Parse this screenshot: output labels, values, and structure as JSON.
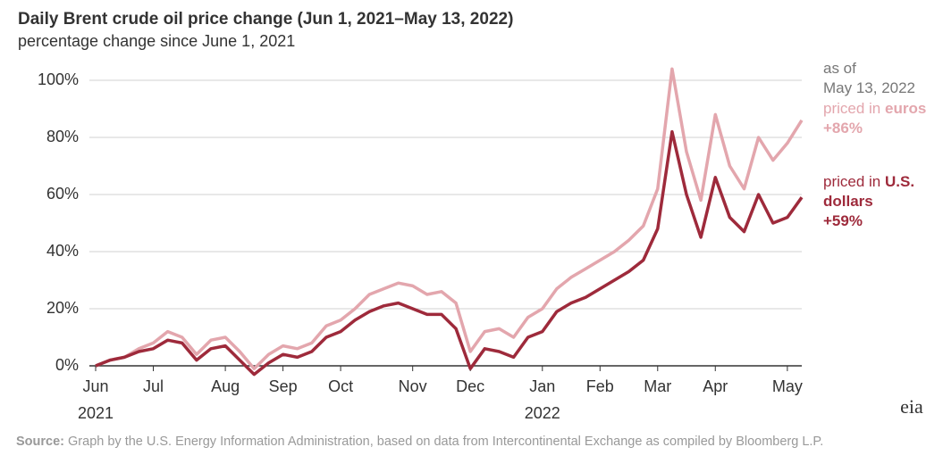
{
  "chart_data": {
    "type": "line",
    "title": "Daily Brent crude oil price change (Jun 1, 2021–May 13, 2022)",
    "subtitle": "percentage change since June 1, 2021",
    "categories": [
      "Jun",
      null,
      null,
      null,
      "Jul",
      null,
      null,
      null,
      null,
      "Aug",
      null,
      null,
      null,
      "Sep",
      null,
      null,
      null,
      "Oct",
      null,
      null,
      null,
      null,
      "Nov",
      null,
      null,
      null,
      "Dec",
      null,
      null,
      null,
      null,
      "Jan",
      null,
      null,
      null,
      "Feb",
      null,
      null,
      null,
      "Mar",
      null,
      null,
      null,
      "Apr",
      null,
      null,
      null,
      null,
      "May",
      null
    ],
    "year_labels": [
      {
        "month": "Jun",
        "year": "2021"
      },
      {
        "month": "Jan",
        "year": "2022"
      }
    ],
    "ylim": [
      -3,
      106
    ],
    "yticks": [
      {
        "value": 0,
        "label": "0%"
      },
      {
        "value": 20,
        "label": "20%"
      },
      {
        "value": 40,
        "label": "40%"
      },
      {
        "value": 60,
        "label": "60%"
      },
      {
        "value": 80,
        "label": "80%"
      },
      {
        "value": 100,
        "label": "100%"
      }
    ],
    "grid": true,
    "as_of": [
      "as of",
      "May 13, 2022"
    ],
    "series": [
      {
        "name": "euros",
        "prefix": "priced in",
        "end_label": "+86%",
        "color": "#e3a6ad",
        "values": [
          0,
          2,
          3,
          6,
          8,
          12,
          10,
          4,
          9,
          10,
          5,
          -1,
          4,
          7,
          6,
          8,
          14,
          16,
          20,
          25,
          27,
          29,
          28,
          25,
          26,
          22,
          5,
          12,
          13,
          10,
          17,
          20,
          27,
          31,
          34,
          37,
          40,
          44,
          49,
          62,
          104,
          75,
          58,
          88,
          70,
          62,
          80,
          72,
          78,
          86
        ]
      },
      {
        "name": "U.S. dollars",
        "prefix": "priced in",
        "end_label": "+59%",
        "color": "#9e2a3b",
        "values": [
          0,
          2,
          3,
          5,
          6,
          9,
          8,
          2,
          6,
          7,
          2,
          -3,
          1,
          4,
          3,
          5,
          10,
          12,
          16,
          19,
          21,
          22,
          20,
          18,
          18,
          13,
          -1,
          6,
          5,
          3,
          10,
          12,
          19,
          22,
          24,
          27,
          30,
          33,
          37,
          48,
          82,
          60,
          45,
          66,
          52,
          47,
          60,
          50,
          52,
          59
        ]
      }
    ],
    "source_label": "Source:",
    "source": "Graph by the U.S. Energy Information Administration, based on data from Intercontinental Exchange as compiled by Bloomberg L.P.",
    "logo": "eia"
  }
}
